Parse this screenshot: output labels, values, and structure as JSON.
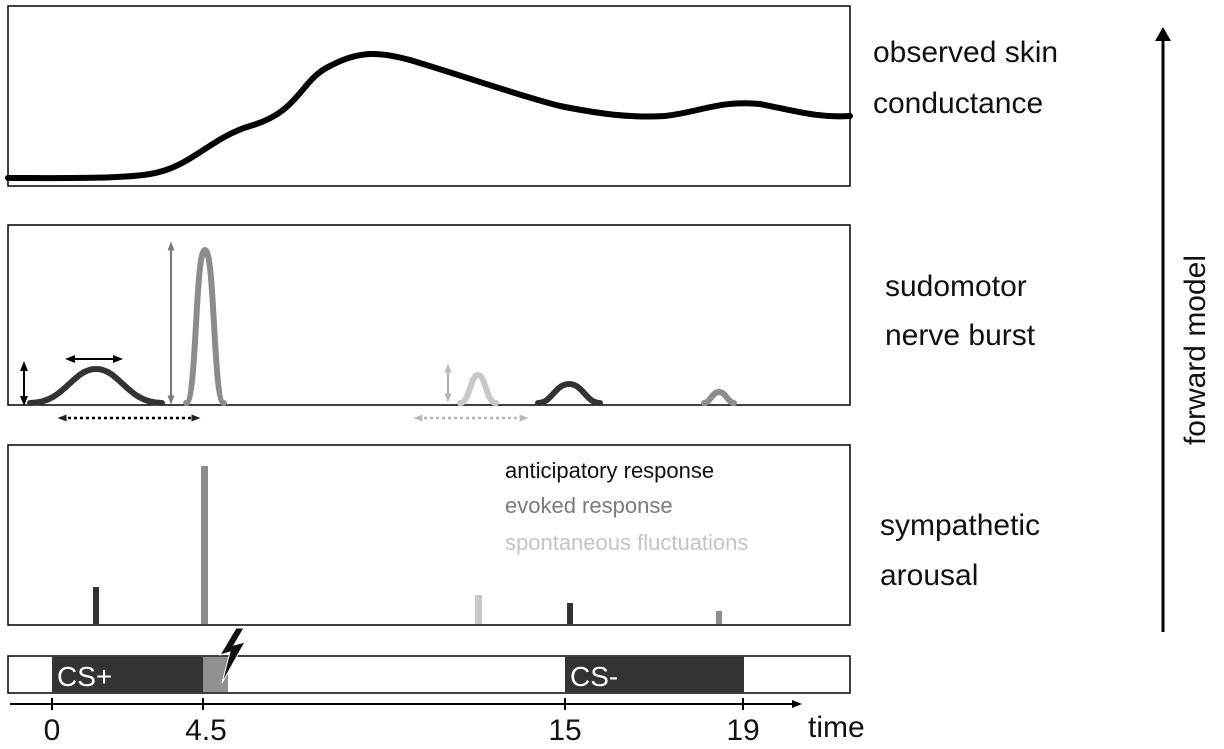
{
  "panels": {
    "skin": {
      "label_lines": [
        "observed skin",
        "conductance"
      ]
    },
    "sudomotor": {
      "label_lines": [
        "sudomotor",
        "nerve burst"
      ]
    },
    "sympathetic": {
      "label_lines": [
        "sympathetic",
        "arousal"
      ]
    }
  },
  "legend": [
    {
      "text": "anticipatory response",
      "color": "#222222"
    },
    {
      "text": "evoked response",
      "color": "#7a7a7a"
    },
    {
      "text": "spontaneous fluctuations",
      "color": "#c4c4c4"
    }
  ],
  "stimuli": {
    "cs_plus": {
      "label": "CS+",
      "start": 0,
      "end": 4.5,
      "color": "#333333"
    },
    "us": {
      "start": 4.5,
      "end": 5.2,
      "color": "#909090",
      "icon": "lightning-bolt-icon"
    },
    "cs_minus": {
      "label": "CS-",
      "start": 15,
      "end": 19,
      "color": "#333333"
    }
  },
  "time_axis": {
    "label": "time",
    "ticks": [
      {
        "value": 0,
        "label": "0"
      },
      {
        "value": 4.5,
        "label": "4.5"
      },
      {
        "value": 15,
        "label": "15"
      },
      {
        "value": 19,
        "label": "19"
      }
    ]
  },
  "side_arrow": {
    "label": "forward model"
  },
  "colors": {
    "anticipatory": "#333333",
    "evoked": "#8c8c8c",
    "spontaneous": "#c8c8c8",
    "conductance_trace": "#000000"
  }
}
